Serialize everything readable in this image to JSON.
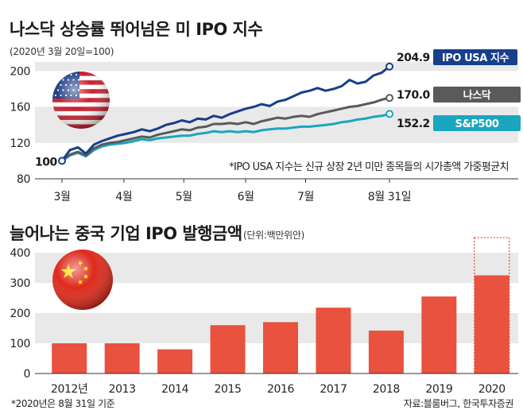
{
  "colors": {
    "ipo_usa": "#163f8c",
    "nasdaq": "#5a5a5a",
    "sp500": "#1aa6bf",
    "bar": "#e8523f",
    "band": "#e9e9e9"
  },
  "icons": {
    "top_panel": "usa-flag-ball-icon",
    "bottom_panel": "china-flag-ball-icon"
  },
  "chart_data": [
    {
      "type": "line",
      "title": "나스닥 상승률 뛰어넘은 미 IPO 지수",
      "subtitle": "(2020년 3월 20일=100)",
      "ylim": [
        80,
        210
      ],
      "yticks": [
        "80",
        "120",
        "160",
        "200"
      ],
      "xticks": [
        {
          "x": "2020-03-20",
          "label": "3월"
        },
        {
          "x": "2020-04-20",
          "label": "4월"
        },
        {
          "x": "2020-05-20",
          "label": "5월"
        },
        {
          "x": "2020-06-20",
          "label": "6월"
        },
        {
          "x": "2020-07-20",
          "label": "7월"
        },
        {
          "x": "2020-08-31",
          "label": "8월 31일"
        }
      ],
      "start_label": "100",
      "x": [
        "2020-03-20",
        "2020-03-24",
        "2020-03-28",
        "2020-04-01",
        "2020-04-05",
        "2020-04-09",
        "2020-04-13",
        "2020-04-17",
        "2020-04-21",
        "2020-04-25",
        "2020-04-29",
        "2020-05-03",
        "2020-05-07",
        "2020-05-11",
        "2020-05-15",
        "2020-05-19",
        "2020-05-23",
        "2020-05-27",
        "2020-05-31",
        "2020-06-04",
        "2020-06-08",
        "2020-06-12",
        "2020-06-16",
        "2020-06-20",
        "2020-06-24",
        "2020-06-28",
        "2020-07-02",
        "2020-07-06",
        "2020-07-10",
        "2020-07-14",
        "2020-07-18",
        "2020-07-22",
        "2020-07-26",
        "2020-07-30",
        "2020-08-03",
        "2020-08-07",
        "2020-08-11",
        "2020-08-15",
        "2020-08-19",
        "2020-08-23",
        "2020-08-27",
        "2020-08-31"
      ],
      "series": [
        {
          "name": "IPO USA 지수",
          "end_label": "204.9",
          "values": [
            100,
            112,
            115,
            108,
            118,
            122,
            125,
            128,
            130,
            132,
            135,
            133,
            136,
            140,
            142,
            145,
            143,
            147,
            146,
            150,
            148,
            152,
            155,
            158,
            160,
            163,
            161,
            166,
            168,
            172,
            176,
            178,
            181,
            178,
            180,
            183,
            190,
            186,
            188,
            195,
            198,
            204.9
          ]
        },
        {
          "name": "나스닥",
          "end_label": "170.0",
          "values": [
            100,
            107,
            110,
            106,
            114,
            118,
            120,
            121,
            123,
            125,
            127,
            126,
            129,
            131,
            133,
            135,
            134,
            137,
            138,
            141,
            141,
            142,
            141,
            143,
            141,
            144,
            146,
            148,
            147,
            149,
            150,
            149,
            152,
            154,
            156,
            158,
            160,
            161,
            163,
            165,
            168,
            170.0
          ]
        },
        {
          "name": "S&P500",
          "end_label": "152.2",
          "values": [
            100,
            106,
            109,
            105,
            112,
            116,
            118,
            119,
            120,
            122,
            124,
            123,
            125,
            126,
            127,
            128,
            128,
            130,
            131,
            133,
            132,
            133,
            132,
            133,
            132,
            134,
            135,
            136,
            136,
            137,
            138,
            138,
            139,
            140,
            141,
            143,
            144,
            146,
            147,
            149,
            150,
            152.2
          ]
        }
      ],
      "annotation": "*IPO USA 지수는 신규 상장 2년 미만 종목들의 시가총액 가중평균치"
    },
    {
      "type": "bar",
      "title": "늘어나는 중국 기업 IPO 발행금액",
      "unit": "(단위:백만위안)",
      "ylim": [
        0,
        400
      ],
      "yticks": [
        "0",
        "100",
        "200",
        "300",
        "400"
      ],
      "categories": [
        "2012년",
        "2013",
        "2014",
        "2015",
        "2016",
        "2017",
        "2018",
        "2019",
        "2020"
      ],
      "values": [
        100,
        100,
        80,
        160,
        170,
        218,
        142,
        255,
        325
      ],
      "projected": {
        "category": "2020",
        "value": 450
      },
      "footnote": "*2020년은 8월 31일 기준",
      "source": "자료:블룸버그, 한국투자증권"
    }
  ]
}
